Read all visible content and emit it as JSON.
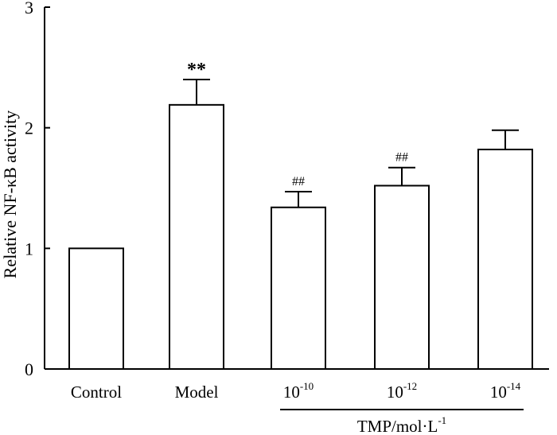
{
  "chart_data": {
    "type": "bar",
    "title": "",
    "xlabel": "",
    "ylabel": "Relative NF-κB activity",
    "ylim": [
      0,
      3
    ],
    "yticks": [
      "0",
      "1",
      "2",
      "3"
    ],
    "categories": [
      {
        "label": "Control",
        "base": "",
        "sup": ""
      },
      {
        "label": "Model",
        "base": "",
        "sup": ""
      },
      {
        "label": "",
        "base": "10",
        "sup": "-10"
      },
      {
        "label": "",
        "base": "10",
        "sup": "-12"
      },
      {
        "label": "",
        "base": "10",
        "sup": "-14"
      }
    ],
    "values": [
      1.0,
      2.19,
      1.34,
      1.52,
      1.82
    ],
    "errors": [
      0,
      0.21,
      0.13,
      0.15,
      0.16
    ],
    "annotations": [
      "",
      "**",
      "##",
      "##",
      ""
    ],
    "group_label": {
      "base": "TMP/mol·L",
      "sup": "-1"
    },
    "grid": false,
    "bar_fill": "#ffffff",
    "bar_stroke": "#000000"
  }
}
